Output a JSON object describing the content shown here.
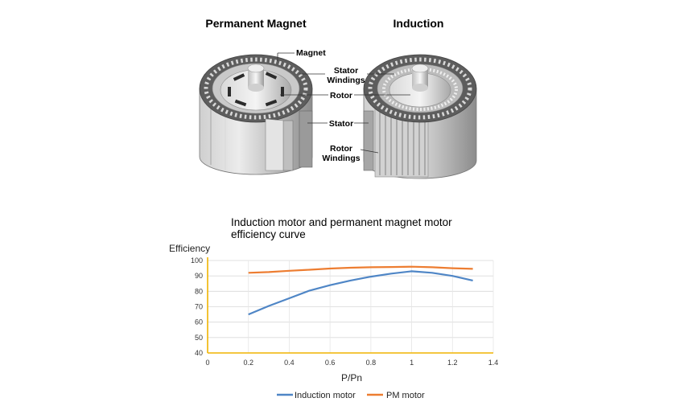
{
  "diagram": {
    "left_title": "Permanent Magnet",
    "right_title": "Induction",
    "labels": {
      "magnet": "Magnet",
      "stator_windings_1": "Stator",
      "stator_windings_2": "Windings",
      "rotor": "Rotor",
      "stator": "Stator",
      "rotor_windings_1": "Rotor",
      "rotor_windings_2": "Windings"
    },
    "colors": {
      "metal_light": "#e6e6e6",
      "metal_mid": "#b8b8b8",
      "metal_dark": "#5a5a5a"
    }
  },
  "chart_data": {
    "type": "line",
    "title_line1": "Induction motor and permanent magnet motor",
    "title_line2": "efficiency curve",
    "ylabel": "Efficiency",
    "xlabel": "P/Pn",
    "xlim": [
      0,
      1.4
    ],
    "ylim": [
      40,
      100
    ],
    "x_ticks": [
      "0",
      "0.2",
      "0.4",
      "0.6",
      "0.8",
      "1",
      "1.2",
      "1.4"
    ],
    "y_ticks": [
      "40",
      "50",
      "60",
      "70",
      "80",
      "90",
      "100"
    ],
    "grid": true,
    "legend_position": "bottom",
    "axis_color": "#f0b400",
    "series": [
      {
        "name": "Induction motor",
        "color": "#4f86c6",
        "x": [
          0.2,
          0.3,
          0.4,
          0.5,
          0.6,
          0.7,
          0.8,
          0.9,
          1.0,
          1.1,
          1.2,
          1.3
        ],
        "y": [
          65,
          70.5,
          75.5,
          80.5,
          84,
          87,
          89.5,
          91.5,
          93,
          92,
          90,
          87
        ]
      },
      {
        "name": "PM motor",
        "color": "#ed7d31",
        "x": [
          0.2,
          0.3,
          0.4,
          0.5,
          0.6,
          0.7,
          0.8,
          0.9,
          1.0,
          1.1,
          1.2,
          1.3
        ],
        "y": [
          92,
          92.5,
          93.3,
          94,
          94.8,
          95.3,
          95.6,
          95.8,
          96,
          95.6,
          95,
          94.6
        ]
      }
    ]
  }
}
